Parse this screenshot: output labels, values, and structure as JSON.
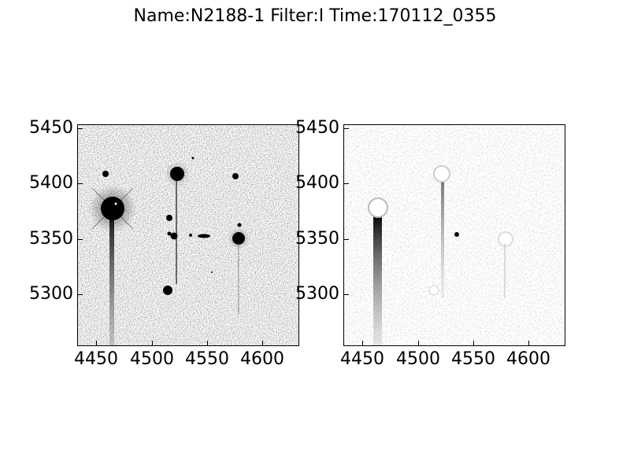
{
  "title": "Name:N2188-1 Filter:I Time:170112_0355",
  "panels": [
    {
      "name": "science-image",
      "x_ticks": [
        "4450",
        "4500",
        "4550",
        "4600"
      ],
      "y_ticks": [
        "5450",
        "5400",
        "5350",
        "5300"
      ]
    },
    {
      "name": "difference-image",
      "x_ticks": [
        "4450",
        "4500",
        "4550",
        "4600"
      ],
      "y_ticks": [
        "5450",
        "5400",
        "5350",
        "5300"
      ]
    }
  ],
  "colors": {
    "background": "#ffffff",
    "ink": "#000000"
  }
}
